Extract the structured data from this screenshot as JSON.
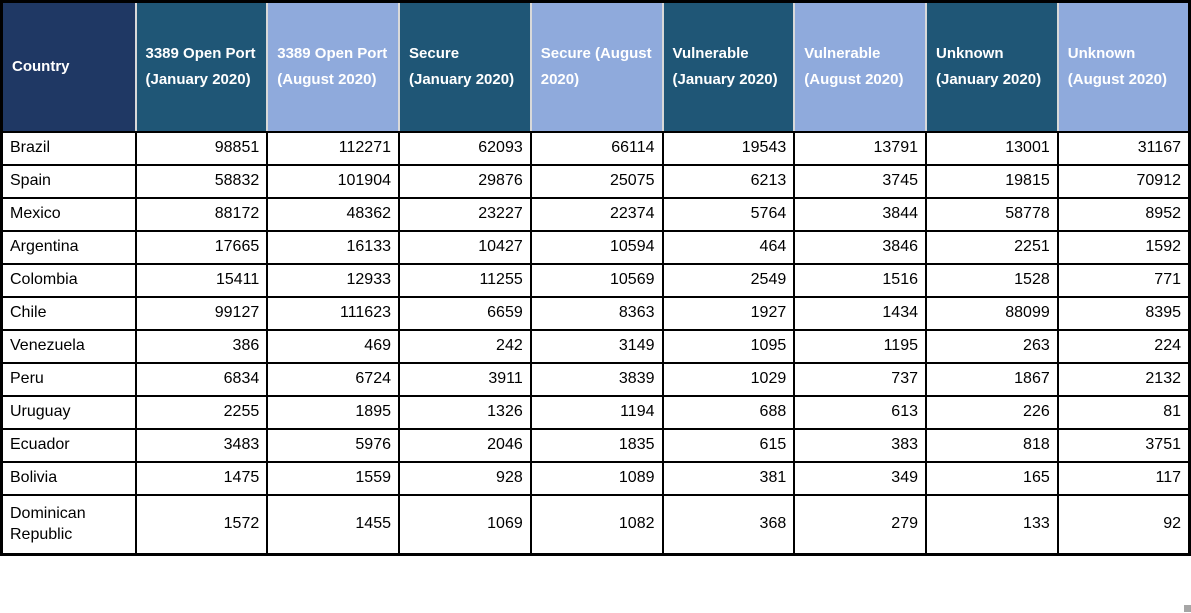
{
  "table": {
    "columns": [
      {
        "id": "country",
        "variant": "country",
        "label": "Country"
      },
      {
        "id": "open-port-january",
        "variant": "dark",
        "label": "3389 Open Port (January 2020)"
      },
      {
        "id": "open-port-august",
        "variant": "light",
        "label": "3389 Open Port (August 2020)"
      },
      {
        "id": "secure-january",
        "variant": "dark",
        "label": "Secure (January 2020)"
      },
      {
        "id": "secure-august",
        "variant": "light",
        "label": "Secure (August 2020)"
      },
      {
        "id": "vulnerable-january",
        "variant": "dark",
        "label": "Vulnerable (January 2020)"
      },
      {
        "id": "vulnerable-august",
        "variant": "light",
        "label": "Vulnerable (August 2020)"
      },
      {
        "id": "unknown-january",
        "variant": "dark",
        "label": "Unknown (January 2020)"
      },
      {
        "id": "unknown-august",
        "variant": "light",
        "label": "Unknown (August 2020)"
      }
    ],
    "rows": [
      {
        "country": "Brazil",
        "values": [
          98851,
          112271,
          62093,
          66114,
          19543,
          13791,
          13001,
          31167
        ]
      },
      {
        "country": "Spain",
        "values": [
          58832,
          101904,
          29876,
          25075,
          6213,
          3745,
          19815,
          70912
        ]
      },
      {
        "country": "Mexico",
        "values": [
          88172,
          48362,
          23227,
          22374,
          5764,
          3844,
          58778,
          8952
        ]
      },
      {
        "country": "Argentina",
        "values": [
          17665,
          16133,
          10427,
          10594,
          464,
          3846,
          2251,
          1592
        ]
      },
      {
        "country": "Colombia",
        "values": [
          15411,
          12933,
          11255,
          10569,
          2549,
          1516,
          1528,
          771
        ]
      },
      {
        "country": "Chile",
        "values": [
          99127,
          111623,
          6659,
          8363,
          1927,
          1434,
          88099,
          8395
        ]
      },
      {
        "country": "Venezuela",
        "values": [
          386,
          469,
          242,
          3149,
          1095,
          1195,
          263,
          224
        ]
      },
      {
        "country": "Peru",
        "values": [
          6834,
          6724,
          3911,
          3839,
          1029,
          737,
          1867,
          2132
        ]
      },
      {
        "country": "Uruguay",
        "values": [
          2255,
          1895,
          1326,
          1194,
          688,
          613,
          226,
          81
        ]
      },
      {
        "country": "Ecuador",
        "values": [
          3483,
          5976,
          2046,
          1835,
          615,
          383,
          818,
          3751
        ]
      },
      {
        "country": "Bolivia",
        "values": [
          1475,
          1559,
          928,
          1089,
          381,
          349,
          165,
          117
        ]
      },
      {
        "country": "Dominican Republic",
        "values": [
          1572,
          1455,
          1069,
          1082,
          368,
          279,
          133,
          92
        ]
      }
    ]
  },
  "colors": {
    "header_navy": "#1f3864",
    "header_steel_blue": "#1f5676",
    "header_light_blue": "#8faadc",
    "header_text": "#ffffff",
    "grid_line": "#000000",
    "header_separator": "#d9d9d9",
    "body_text": "#000000"
  }
}
